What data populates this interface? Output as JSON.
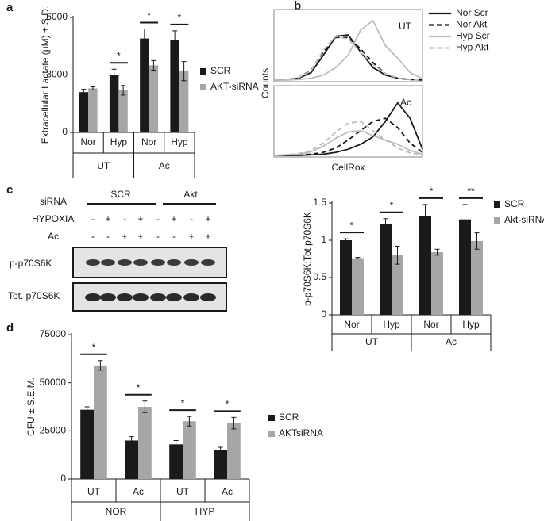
{
  "chart_data": [
    {
      "type": "bar",
      "panel": "a",
      "ylabel": "Extracellular Lactate (μM) ± S.D.",
      "categories": [
        "Nor",
        "Hyp",
        "Nor",
        "Hyp"
      ],
      "groups": [
        "UT",
        "UT",
        "Ac",
        "Ac"
      ],
      "series": [
        {
          "name": "SCR",
          "color": "#1a1a1a",
          "values": [
            2100,
            3000,
            4900,
            4800
          ],
          "errors": [
            150,
            300,
            500,
            500
          ]
        },
        {
          "name": "AKT-siRNA",
          "color": "#a6a6a6",
          "values": [
            2300,
            2200,
            3500,
            3200
          ],
          "errors": [
            80,
            250,
            250,
            500
          ]
        }
      ],
      "significance": [
        null,
        "*",
        "*",
        "*"
      ],
      "ylim": [
        0,
        6000
      ],
      "yticks": [
        0,
        3000,
        6000
      ],
      "legend": "right"
    },
    {
      "type": "line",
      "panel": "b",
      "xlabel": "CellRox",
      "ylabel": "Counts",
      "x": [
        0,
        1,
        2,
        3,
        4,
        5,
        6,
        7,
        8,
        9,
        10,
        11,
        12
      ],
      "xlim": [
        0,
        12
      ],
      "ylim": [
        0,
        100
      ],
      "series": [
        {
          "name": "Nor Scr",
          "color": "#1a1a1a",
          "dash": false
        },
        {
          "name": "Nor Akt",
          "color": "#1a1a1a",
          "dash": true
        },
        {
          "name": "Hyp Scr",
          "color": "#bdbdbd",
          "dash": false
        },
        {
          "name": "Hyp Akt",
          "color": "#bdbdbd",
          "dash": true
        }
      ],
      "subplots": [
        {
          "label": "UT",
          "values": [
            [
              0,
              1,
              3,
              12,
              40,
              70,
              72,
              45,
              20,
              8,
              3,
              1,
              0
            ],
            [
              0,
              1,
              4,
              16,
              45,
              68,
              68,
              50,
              28,
              10,
              3,
              1,
              0
            ],
            [
              0,
              0,
              1,
              3,
              8,
              20,
              40,
              80,
              95,
              55,
              35,
              12,
              2
            ],
            [
              0,
              1,
              4,
              15,
              48,
              70,
              65,
              45,
              25,
              10,
              3,
              1,
              0
            ]
          ]
        },
        {
          "label": "Ac",
          "values": [
            [
              0,
              0,
              0,
              1,
              2,
              5,
              10,
              18,
              30,
              55,
              85,
              60,
              10
            ],
            [
              0,
              0,
              1,
              2,
              5,
              12,
              25,
              40,
              55,
              60,
              45,
              20,
              5
            ],
            [
              0,
              1,
              2,
              6,
              15,
              28,
              38,
              40,
              32,
              25,
              18,
              8,
              2
            ],
            [
              0,
              1,
              3,
              8,
              20,
              38,
              52,
              55,
              40,
              25,
              12,
              4,
              1
            ]
          ]
        }
      ],
      "legend": "right"
    },
    {
      "type": "bar",
      "ylabel": "p-p70S6K:Tot.p70S6K",
      "categories": [
        "Nor",
        "Hyp",
        "Nor",
        "Hyp"
      ],
      "groups": [
        "UT",
        "UT",
        "Ac",
        "Ac"
      ],
      "series": [
        {
          "name": "SCR",
          "color": "#1a1a1a",
          "values": [
            1.0,
            1.22,
            1.33,
            1.28
          ],
          "errors": [
            0.02,
            0.07,
            0.15,
            0.2
          ]
        },
        {
          "name": "Akt-siRNA",
          "color": "#a6a6a6",
          "values": [
            0.76,
            0.8,
            0.84,
            0.99
          ],
          "errors": [
            0.01,
            0.12,
            0.04,
            0.11
          ]
        }
      ],
      "significance": [
        "*",
        "*",
        "*",
        "**"
      ],
      "ylim": [
        0,
        1.5
      ],
      "yticks": [
        0,
        0.5,
        1,
        1.5
      ],
      "legend": "right"
    },
    {
      "type": "bar",
      "panel": "d",
      "ylabel": "CFU ± S.E.M.",
      "categories": [
        "UT",
        "Ac",
        "UT",
        "Ac"
      ],
      "groups": [
        "NOR",
        "NOR",
        "HYP",
        "HYP"
      ],
      "series": [
        {
          "name": "SCR",
          "color": "#1a1a1a",
          "values": [
            36000,
            20000,
            18000,
            15000
          ],
          "errors": [
            1500,
            2000,
            2000,
            1500
          ]
        },
        {
          "name": "AKTsiRNA",
          "color": "#a6a6a6",
          "values": [
            59000,
            37500,
            30000,
            29000
          ],
          "errors": [
            2500,
            3000,
            2500,
            3000
          ]
        }
      ],
      "significance": [
        "*",
        "*",
        "*",
        "*"
      ],
      "ylim": [
        0,
        75000
      ],
      "yticks": [
        0,
        25000,
        50000,
        75000
      ],
      "legend": "right"
    }
  ],
  "blot": {
    "panel": "c",
    "row_label": "siRNA",
    "groups": [
      "SCR",
      "Akt"
    ],
    "hypoxia_label": "HYPOXIA",
    "hypoxia": [
      "-",
      "+",
      "-",
      "+",
      "-",
      "+",
      "-",
      "+"
    ],
    "ac_label": "Ac",
    "ac": [
      "-",
      "-",
      "+",
      "+",
      "-",
      "-",
      "+",
      "+"
    ],
    "bands": [
      "p-p70S6K",
      "Tot. p70S6K"
    ]
  }
}
